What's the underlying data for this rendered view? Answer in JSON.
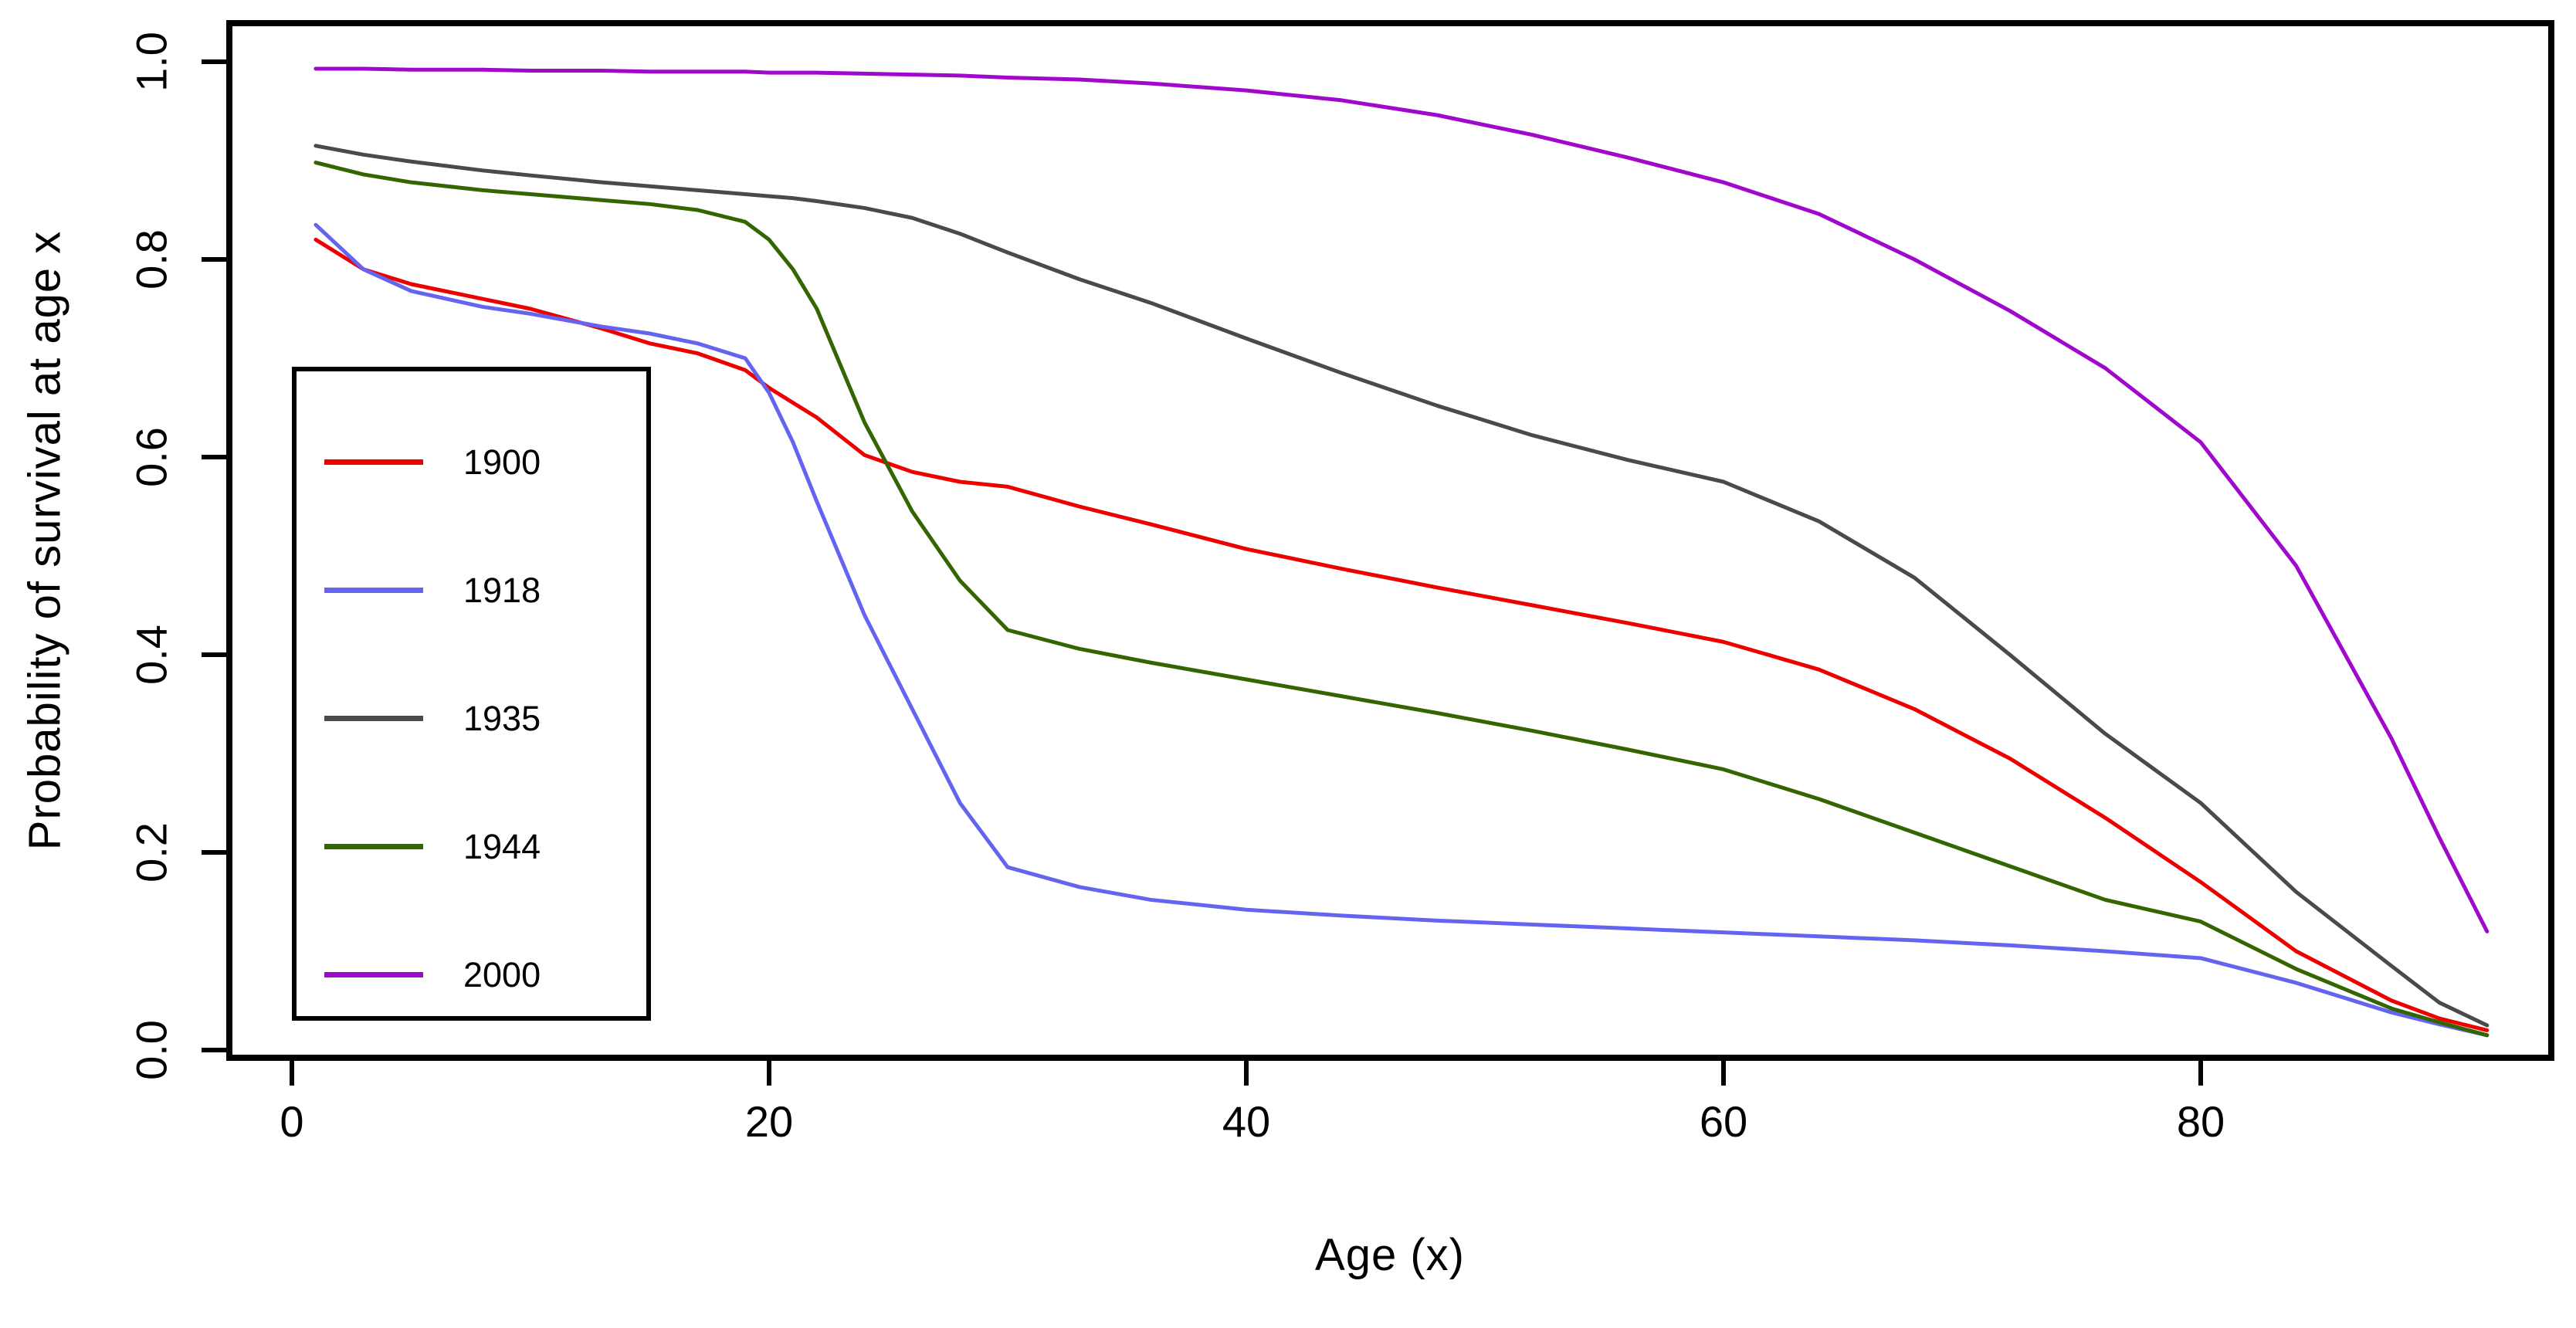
{
  "chart_data": {
    "type": "line",
    "title": "",
    "xlabel": "Age (x)",
    "ylabel": "Probability of survival at age x",
    "xlim": [
      -3,
      96
    ],
    "ylim": [
      0,
      1
    ],
    "xticks": [
      0,
      20,
      40,
      60,
      80
    ],
    "xtick_labels": [
      "0",
      "20",
      "40",
      "60",
      "80"
    ],
    "yticks": [
      0.0,
      0.2,
      0.4,
      0.6,
      0.8,
      1.0
    ],
    "ytick_labels": [
      "0.0",
      "0.2",
      "0.4",
      "0.6",
      "0.8",
      "1.0"
    ],
    "grid": false,
    "legend_position": "inside-upper-left",
    "background_color": "#ffffff",
    "axis_color": "#000000",
    "x": [
      1,
      3,
      5,
      8,
      10,
      13,
      15,
      17,
      19,
      20,
      21,
      22,
      24,
      26,
      28,
      30,
      33,
      36,
      40,
      44,
      48,
      52,
      56,
      60,
      64,
      68,
      72,
      76,
      80,
      84,
      88,
      90,
      92
    ],
    "series": [
      {
        "name": "1900",
        "color": "#ee0000",
        "values": [
          0.82,
          0.79,
          0.775,
          0.76,
          0.75,
          0.73,
          0.715,
          0.705,
          0.688,
          0.67,
          0.655,
          0.64,
          0.602,
          0.585,
          0.575,
          0.57,
          0.55,
          0.532,
          0.507,
          0.487,
          0.468,
          0.45,
          0.432,
          0.413,
          0.385,
          0.345,
          0.295,
          0.235,
          0.17,
          0.1,
          0.05,
          0.032,
          0.02
        ]
      },
      {
        "name": "1918",
        "color": "#6464f0",
        "values": [
          0.835,
          0.79,
          0.768,
          0.752,
          0.745,
          0.732,
          0.725,
          0.715,
          0.7,
          0.665,
          0.615,
          0.555,
          0.44,
          0.345,
          0.25,
          0.185,
          0.165,
          0.152,
          0.142,
          0.136,
          0.131,
          0.127,
          0.123,
          0.119,
          0.115,
          0.111,
          0.106,
          0.1,
          0.093,
          0.068,
          0.038,
          0.026,
          0.015
        ]
      },
      {
        "name": "1935",
        "color": "#4a4a4a",
        "values": [
          0.915,
          0.906,
          0.899,
          0.89,
          0.885,
          0.878,
          0.874,
          0.87,
          0.866,
          0.864,
          0.862,
          0.859,
          0.852,
          0.842,
          0.826,
          0.807,
          0.78,
          0.756,
          0.72,
          0.685,
          0.652,
          0.622,
          0.597,
          0.575,
          0.535,
          0.478,
          0.4,
          0.32,
          0.25,
          0.16,
          0.085,
          0.048,
          0.025
        ]
      },
      {
        "name": "1944",
        "color": "#336600",
        "values": [
          0.898,
          0.886,
          0.878,
          0.87,
          0.866,
          0.86,
          0.856,
          0.85,
          0.838,
          0.82,
          0.79,
          0.75,
          0.635,
          0.545,
          0.475,
          0.425,
          0.406,
          0.392,
          0.375,
          0.358,
          0.341,
          0.323,
          0.304,
          0.284,
          0.254,
          0.22,
          0.186,
          0.152,
          0.13,
          0.082,
          0.042,
          0.028,
          0.015
        ]
      },
      {
        "name": "2000",
        "color": "#a008cc",
        "values": [
          0.993,
          0.993,
          0.992,
          0.992,
          0.991,
          0.991,
          0.99,
          0.99,
          0.99,
          0.989,
          0.989,
          0.989,
          0.988,
          0.987,
          0.986,
          0.984,
          0.982,
          0.978,
          0.971,
          0.961,
          0.946,
          0.926,
          0.903,
          0.878,
          0.846,
          0.8,
          0.748,
          0.69,
          0.615,
          0.49,
          0.315,
          0.215,
          0.12
        ]
      }
    ]
  }
}
